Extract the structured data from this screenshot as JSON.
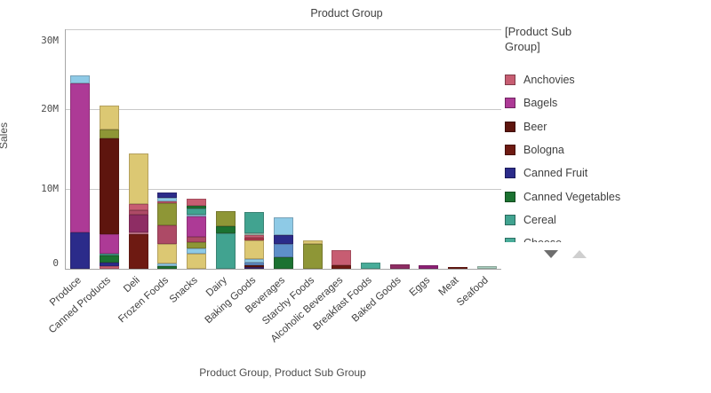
{
  "title": "Product Group",
  "y_axis": {
    "label": "Sales",
    "ticks": [
      {
        "label": "30M",
        "value": 30
      },
      {
        "label": "20M",
        "value": 20
      },
      {
        "label": "10M",
        "value": 10
      },
      {
        "label": "0",
        "value": 0
      }
    ]
  },
  "x_axis": {
    "title": "Product Group,  Product Sub Group"
  },
  "legend": {
    "title": "[Product Sub Group]",
    "items": [
      {
        "label": "Anchovies",
        "color": "rose"
      },
      {
        "label": "Bagels",
        "color": "magenta"
      },
      {
        "label": "Beer",
        "color": "beer"
      },
      {
        "label": "Bologna",
        "color": "bologna"
      },
      {
        "label": "Canned Fruit",
        "color": "indigo"
      },
      {
        "label": "Canned Vegetables",
        "color": "green"
      },
      {
        "label": "Cereal",
        "color": "teal"
      },
      {
        "label": "Cheese",
        "color": "teal2"
      }
    ],
    "scroll": {
      "down_enabled": true,
      "up_enabled": false
    }
  },
  "chart_data": {
    "type": "bar",
    "stacked": true,
    "title": "Product Group",
    "xlabel": "Product Group,  Product Sub Group",
    "ylabel": "Sales",
    "unit": "M",
    "ylim": [
      0,
      30
    ],
    "grid": "horizontal",
    "legend_position": "right",
    "palette": {
      "rose": "#c75d72",
      "magenta": "#ad3a96",
      "beer": "#5e150e",
      "bologna": "#6e1a12",
      "indigo": "#2b2b8a",
      "green": "#1b7231",
      "teal": "#41a390",
      "teal2": "#48ac99",
      "khaki": "#dcc873",
      "olive": "#8e9636",
      "lightblue": "#8ecae6",
      "steelblue": "#5e8fc9",
      "plum": "#8e2d64",
      "purple": "#8c2076",
      "darkrose": "#ad4a66",
      "red": "#b03a4d",
      "paleteal": "#a7cfbf",
      "darkpurple": "#37226e",
      "pink": "#d9849c"
    },
    "categories": [
      "Produce",
      "Canned Products",
      "Deli",
      "Frozen Foods",
      "Snacks",
      "Dairy",
      "Baking Goods",
      "Beverages",
      "Starchy Foods",
      "Alcoholic Beverages",
      "Breakfast Foods",
      "Baked Goods",
      "Eggs",
      "Meat",
      "Seafood"
    ],
    "bars": [
      {
        "category": "Produce",
        "total": 24.2,
        "segments": [
          {
            "color": "indigo",
            "value": 4.6
          },
          {
            "color": "magenta",
            "value": 18.6
          },
          {
            "color": "lightblue",
            "value": 1.0
          }
        ]
      },
      {
        "category": "Canned Products",
        "total": 20.4,
        "segments": [
          {
            "color": "rose",
            "value": 0.35
          },
          {
            "color": "indigo",
            "value": 0.45
          },
          {
            "color": "green",
            "value": 0.9
          },
          {
            "color": "teal",
            "value": 0.15
          },
          {
            "color": "magenta",
            "value": 2.45
          },
          {
            "color": "beer",
            "value": 12.0
          },
          {
            "color": "olive",
            "value": 1.1
          },
          {
            "color": "khaki",
            "value": 3.0
          }
        ]
      },
      {
        "category": "Deli",
        "total": 14.5,
        "segments": [
          {
            "color": "bologna",
            "value": 4.3
          },
          {
            "color": "pink",
            "value": 0.3
          },
          {
            "color": "plum",
            "value": 2.2
          },
          {
            "color": "darkrose",
            "value": 0.5
          },
          {
            "color": "rose",
            "value": 0.8
          },
          {
            "color": "khaki",
            "value": 6.4
          }
        ]
      },
      {
        "category": "Frozen Foods",
        "total": 9.6,
        "segments": [
          {
            "color": "green",
            "value": 0.35
          },
          {
            "color": "lightblue",
            "value": 0.35
          },
          {
            "color": "khaki",
            "value": 2.4
          },
          {
            "color": "darkrose",
            "value": 2.3
          },
          {
            "color": "olive",
            "value": 2.8
          },
          {
            "color": "rose",
            "value": 0.3
          },
          {
            "color": "lightblue",
            "value": 0.35
          },
          {
            "color": "indigo",
            "value": 0.75
          }
        ]
      },
      {
        "category": "Snacks",
        "total": 8.8,
        "segments": [
          {
            "color": "khaki",
            "value": 1.9
          },
          {
            "color": "lightblue",
            "value": 0.7
          },
          {
            "color": "olive",
            "value": 0.7
          },
          {
            "color": "darkrose",
            "value": 0.7
          },
          {
            "color": "magenta",
            "value": 2.6
          },
          {
            "color": "lightblue",
            "value": 0.2
          },
          {
            "color": "teal",
            "value": 0.8
          },
          {
            "color": "green",
            "value": 0.3
          },
          {
            "color": "rose",
            "value": 0.9
          }
        ]
      },
      {
        "category": "Dairy",
        "total": 7.2,
        "segments": [
          {
            "color": "teal",
            "value": 4.4
          },
          {
            "color": "green",
            "value": 0.9
          },
          {
            "color": "olive",
            "value": 1.9
          }
        ]
      },
      {
        "category": "Baking Goods",
        "total": 7.1,
        "segments": [
          {
            "color": "darkpurple",
            "value": 0.2
          },
          {
            "color": "beer",
            "value": 0.2
          },
          {
            "color": "steelblue",
            "value": 0.4
          },
          {
            "color": "lightblue",
            "value": 0.4
          },
          {
            "color": "khaki",
            "value": 2.4
          },
          {
            "color": "red",
            "value": 0.3
          },
          {
            "color": "rose",
            "value": 0.3
          },
          {
            "color": "paleteal",
            "value": 0.2
          },
          {
            "color": "teal",
            "value": 2.7
          }
        ]
      },
      {
        "category": "Beverages",
        "total": 6.4,
        "segments": [
          {
            "color": "green",
            "value": 1.4
          },
          {
            "color": "steelblue",
            "value": 1.7
          },
          {
            "color": "indigo",
            "value": 1.1
          },
          {
            "color": "lightblue",
            "value": 2.2
          }
        ]
      },
      {
        "category": "Starchy Foods",
        "total": 3.6,
        "segments": [
          {
            "color": "olive",
            "value": 3.1
          },
          {
            "color": "khaki",
            "value": 0.5
          }
        ]
      },
      {
        "category": "Alcoholic Beverages",
        "total": 2.3,
        "segments": [
          {
            "color": "bologna",
            "value": 0.5
          },
          {
            "color": "rose",
            "value": 1.8
          }
        ]
      },
      {
        "category": "Breakfast Foods",
        "total": 0.8,
        "segments": [
          {
            "color": "teal2",
            "value": 0.8
          }
        ]
      },
      {
        "category": "Baked Goods",
        "total": 0.6,
        "segments": [
          {
            "color": "plum",
            "value": 0.6
          }
        ]
      },
      {
        "category": "Eggs",
        "total": 0.45,
        "segments": [
          {
            "color": "purple",
            "value": 0.45
          }
        ]
      },
      {
        "category": "Meat",
        "total": 0.25,
        "segments": [
          {
            "color": "bologna",
            "value": 0.25
          }
        ]
      },
      {
        "category": "Seafood",
        "total": 0.3,
        "segments": [
          {
            "color": "paleteal",
            "value": 0.3
          }
        ]
      }
    ]
  }
}
